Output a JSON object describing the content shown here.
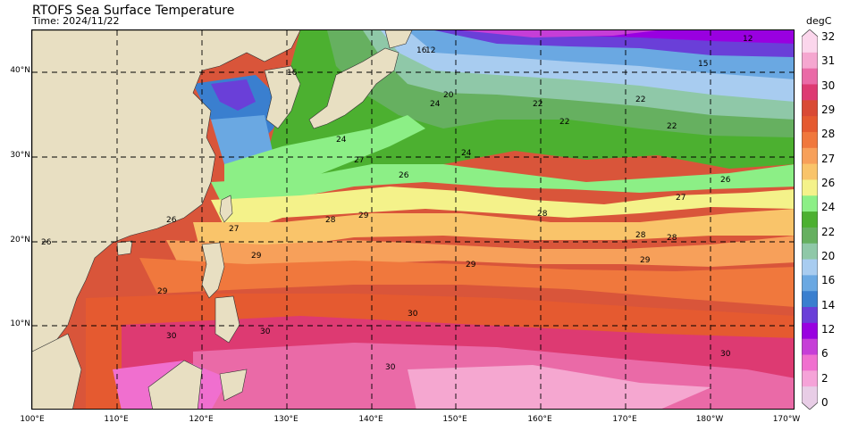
{
  "title": "RTOFS Sea Surface Temperature",
  "subtitle": "Time: 2024/11/22",
  "colorbar": {
    "unit": "degC",
    "ticks": [
      "0",
      "2",
      "6",
      "12",
      "14",
      "16",
      "20",
      "22",
      "24",
      "26",
      "27",
      "28",
      "29",
      "30",
      "31",
      "32"
    ],
    "colors": [
      "#e8cde6",
      "#f5a3d8",
      "#f06fcf",
      "#c63ed7",
      "#9900e0",
      "#6a3fd8",
      "#3a7fcf",
      "#6aa8e2",
      "#a8ccf0",
      "#8fc8a8",
      "#66b060",
      "#4cb030",
      "#8cef86",
      "#f4f28a",
      "#f9c46a",
      "#f7a05a",
      "#f0783d",
      "#e55a30",
      "#d94a35",
      "#dd3a72",
      "#ea6aa7",
      "#f5a7d0",
      "#fbd6ec"
    ]
  },
  "lat_labels": [
    "40°N",
    "30°N",
    "20°N",
    "10°N"
  ],
  "lon_labels": [
    "100°E",
    "110°E",
    "120°E",
    "130°E",
    "140°E",
    "150°E",
    "160°E",
    "170°E",
    "180°W",
    "170°W"
  ],
  "contour_labels": [
    "12",
    "16",
    "16",
    "20",
    "22",
    "22",
    "22",
    "24",
    "24",
    "24",
    "26",
    "26",
    "26",
    "27",
    "27",
    "28",
    "28",
    "28",
    "28",
    "29",
    "29",
    "29",
    "29",
    "29",
    "30",
    "30",
    "30",
    "30",
    "30",
    "27",
    "26",
    "22",
    "12",
    "15"
  ]
}
